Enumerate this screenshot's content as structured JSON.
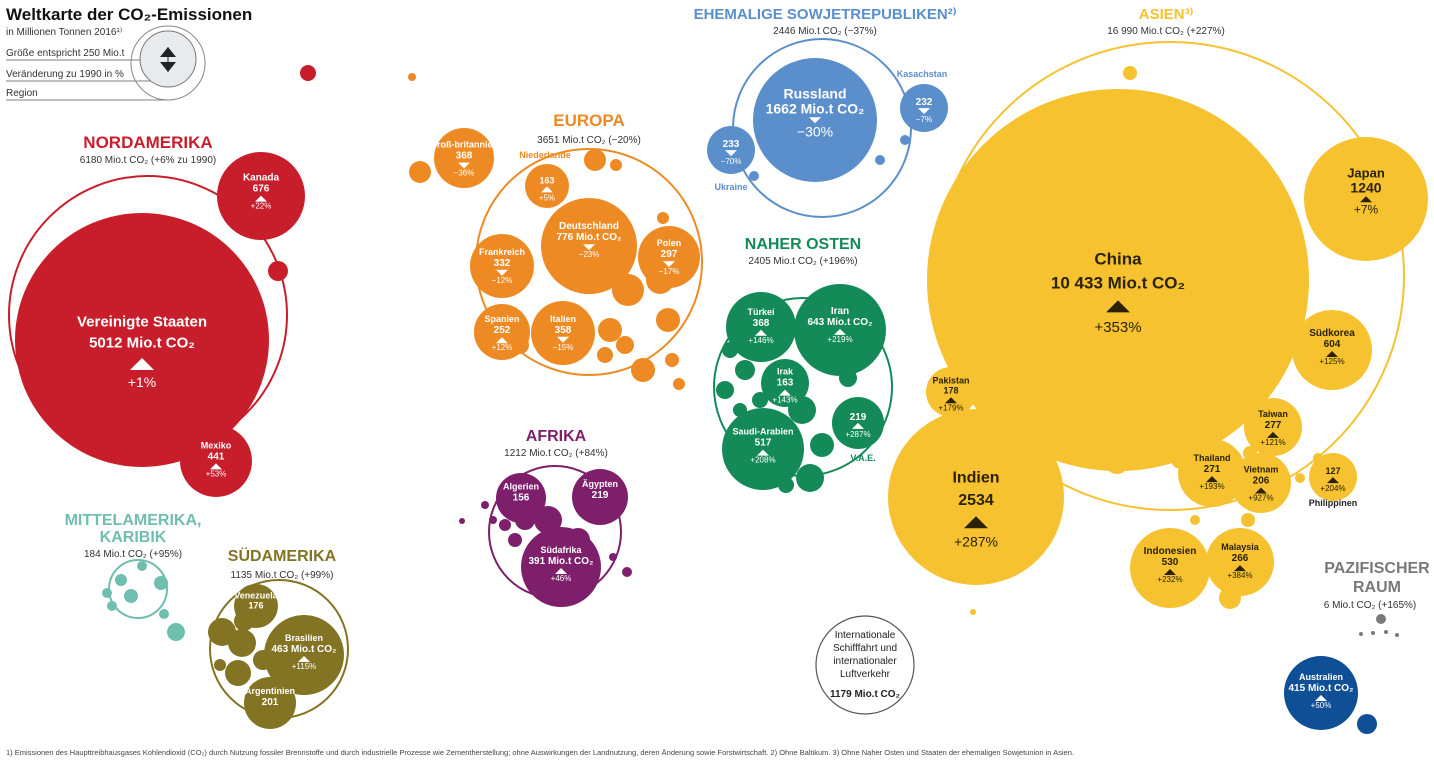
{
  "title_line1": "Weltkarte der CO₂-Emissionen",
  "title_line2": "in Millionen Tonnen 2016¹⁾",
  "legend": {
    "size": "Größe entspricht 250 Mio.t",
    "change": "Veränderung zu 1990 in %",
    "region": "Region"
  },
  "colors": {
    "nordamerika": "#c81e2b",
    "europa": "#ee8a23",
    "sowjet": "#5b8fcb",
    "asien": "#f6c230",
    "nahost": "#148a58",
    "afrika": "#7d1f6a",
    "mittelamerika": "#6fbeb0",
    "suedamerika": "#837423",
    "pazifik": "#77797c",
    "australien": "#0f4f96"
  },
  "regions": [
    {
      "key": "nordamerika",
      "name": "NORDAMERIKA",
      "sub": "6180 Mio.t CO₂ (+6% zu 1990)"
    },
    {
      "key": "europa",
      "name": "EUROPA",
      "sub": "3651 Mio.t CO₂ (−20%)"
    },
    {
      "key": "sowjet",
      "name": "EHEMALIGE SOWJETREPUBLIKEN²⁾",
      "sub": "2446 Mio.t CO₂ (−37%)"
    },
    {
      "key": "asien",
      "name": "ASIEN³⁾",
      "sub": "16 990 Mio.t CO₂ (+227%)"
    },
    {
      "key": "nahost",
      "name": "NAHER OSTEN",
      "sub": "2405 Mio.t CO₂ (+196%)"
    },
    {
      "key": "afrika",
      "name": "AFRIKA",
      "sub": "1212 Mio.t CO₂ (+84%)"
    },
    {
      "key": "mittelamerika",
      "name1": "MITTELAMERIKA,",
      "name2": "KARIBIK",
      "sub": "184 Mio.t CO₂ (+95%)"
    },
    {
      "key": "suedamerika",
      "name": "SÜDAMERIKA",
      "sub": "1135 Mio.t CO₂ (+99%)"
    },
    {
      "key": "pazifik",
      "name1": "PAZIFISCHER",
      "name2": "RAUM",
      "sub": "6 Mio.t CO₂ (+165%)"
    }
  ],
  "chart_data": {
    "type": "bubble",
    "title": "Weltkarte der CO₂-Emissionen",
    "unit": "Mio.t CO₂ 2016",
    "size_reference": 250,
    "countries": [
      {
        "name": "Vereinigte Staaten",
        "region": "nordamerika",
        "value": 5012,
        "change": "+1%",
        "value_label": "5012 Mio.t CO₂"
      },
      {
        "name": "Kanada",
        "region": "nordamerika",
        "value": 676,
        "change": "+22%",
        "value_label": "676"
      },
      {
        "name": "Mexiko",
        "region": "nordamerika",
        "value": 441,
        "change": "+53%",
        "value_label": "441"
      },
      {
        "name": "Groß-britannien",
        "region": "europa",
        "value": 368,
        "change": "−36%",
        "value_label": "368"
      },
      {
        "name": "Niederlande",
        "region": "europa",
        "value": 163,
        "change": "+5%",
        "value_label": "163"
      },
      {
        "name": "Deutschland",
        "region": "europa",
        "value": 776,
        "change": "−23%",
        "value_label": "776 Mio.t CO₂"
      },
      {
        "name": "Frankreich",
        "region": "europa",
        "value": 332,
        "change": "−12%",
        "value_label": "332"
      },
      {
        "name": "Polen",
        "region": "europa",
        "value": 297,
        "change": "−17%",
        "value_label": "297"
      },
      {
        "name": "Spanien",
        "region": "europa",
        "value": 252,
        "change": "+12%",
        "value_label": "252"
      },
      {
        "name": "Italien",
        "region": "europa",
        "value": 358,
        "change": "−15%",
        "value_label": "358"
      },
      {
        "name": "Russland",
        "region": "sowjet",
        "value": 1662,
        "change": "−30%",
        "value_label": "1662 Mio.t CO₂"
      },
      {
        "name": "Kasachstan",
        "region": "sowjet",
        "value": 232,
        "change": "−7%",
        "value_label": "232"
      },
      {
        "name": "Ukraine",
        "region": "sowjet",
        "value": 233,
        "change": "−70%",
        "value_label": "233"
      },
      {
        "name": "China",
        "region": "asien",
        "value": 10433,
        "change": "+353%",
        "value_label": "10 433 Mio.t CO₂"
      },
      {
        "name": "Japan",
        "region": "asien",
        "value": 1240,
        "change": "+7%",
        "value_label": "1240"
      },
      {
        "name": "Indien",
        "region": "asien",
        "value": 2534,
        "change": "+287%",
        "value_label": "2534"
      },
      {
        "name": "Südkorea",
        "region": "asien",
        "value": 604,
        "change": "+125%",
        "value_label": "604"
      },
      {
        "name": "Pakistan",
        "region": "asien",
        "value": 178,
        "change": "+179%",
        "value_label": "178"
      },
      {
        "name": "Taiwan",
        "region": "asien",
        "value": 277,
        "change": "+121%",
        "value_label": "277"
      },
      {
        "name": "Thailand",
        "region": "asien",
        "value": 271,
        "change": "+193%",
        "value_label": "271"
      },
      {
        "name": "Vietnam",
        "region": "asien",
        "value": 206,
        "change": "+927%",
        "value_label": "206"
      },
      {
        "name": "Philippinen",
        "region": "asien",
        "value": 127,
        "change": "+204%",
        "value_label": "127"
      },
      {
        "name": "Indonesien",
        "region": "asien",
        "value": 530,
        "change": "+232%",
        "value_label": "530"
      },
      {
        "name": "Malaysia",
        "region": "asien",
        "value": 266,
        "change": "+384%",
        "value_label": "266"
      },
      {
        "name": "Türkei",
        "region": "nahost",
        "value": 368,
        "change": "+146%",
        "value_label": "368"
      },
      {
        "name": "Iran",
        "region": "nahost",
        "value": 643,
        "change": "+219%",
        "value_label": "643 Mio.t CO₂"
      },
      {
        "name": "Irak",
        "region": "nahost",
        "value": 163,
        "change": "+143%",
        "value_label": "163"
      },
      {
        "name": "Saudi-Arabien",
        "region": "nahost",
        "value": 517,
        "change": "+208%",
        "value_label": "517"
      },
      {
        "name": "V.A.E.",
        "region": "nahost",
        "value": 219,
        "change": "+287%",
        "value_label": "219"
      },
      {
        "name": "Algerien",
        "region": "afrika",
        "value": 156,
        "change": "",
        "value_label": "156"
      },
      {
        "name": "Ägypten",
        "region": "afrika",
        "value": 219,
        "change": "",
        "value_label": "219"
      },
      {
        "name": "Südafrika",
        "region": "afrika",
        "value": 391,
        "change": "+46%",
        "value_label": "391 Mio.t CO₂"
      },
      {
        "name": "Venezuela",
        "region": "suedamerika",
        "value": 176,
        "change": "",
        "value_label": "176"
      },
      {
        "name": "Brasilien",
        "region": "suedamerika",
        "value": 463,
        "change": "+115%",
        "value_label": "463 Mio.t CO₂"
      },
      {
        "name": "Argentinien",
        "region": "suedamerika",
        "value": 201,
        "change": "",
        "value_label": "201"
      },
      {
        "name": "Australien",
        "region": "australien",
        "value": 415,
        "change": "+50%",
        "value_label": "415 Mio.t CO₂"
      }
    ],
    "international": {
      "line1": "Internationale",
      "line2": "Schifffahrt und",
      "line3": "internationaler",
      "line4": "Luftverkehr",
      "value": 1179,
      "value_label": "1179 Mio.t CO₂"
    }
  },
  "footnote": "1) Emissionen des Haupttreibhausgases Kohlendioxid (CO₂) durch Nutzung fossiler Brennstoffe und durch industrielle Prozesse wie Zementherstellung; ohne Auswirkungen der Landnutzung, deren Änderung sowie Forstwirtschaft. 2) Ohne Baltikum. 3) Ohne Naher Osten und Staaten der ehemaligen Sowjetunion in Asien."
}
